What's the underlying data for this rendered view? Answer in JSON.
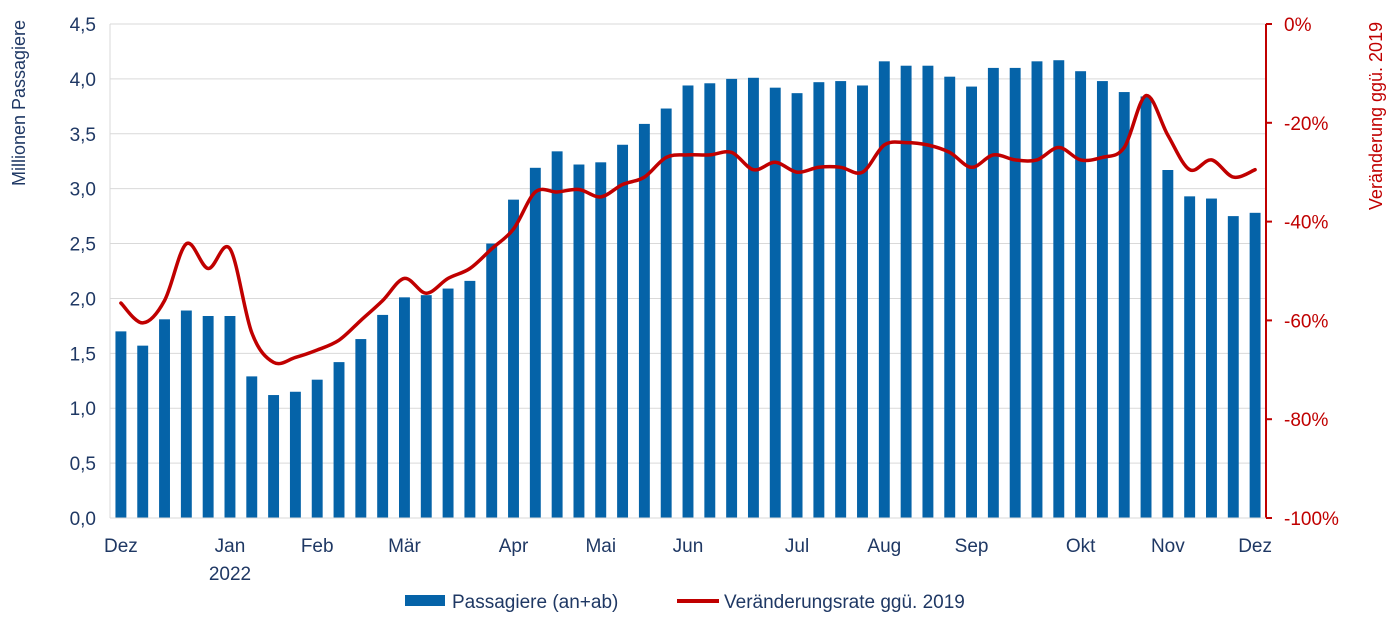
{
  "chart_data": {
    "type": "bar+line",
    "ylabel_left": "Millionen Passagiere",
    "ylabel_right": "Veränderung ggü. 2019",
    "ylim_left": [
      0,
      4.5
    ],
    "ylim_right": [
      -100,
      0
    ],
    "yticks_left": [
      "0,0",
      "0,5",
      "1,0",
      "1,5",
      "2,0",
      "2,5",
      "3,0",
      "3,5",
      "4,0",
      "4,5"
    ],
    "yticks_right": [
      "0%",
      "-20%",
      "-40%",
      "-60%",
      "-80%",
      "-100%"
    ],
    "x_labels": [
      {
        "index": 0,
        "label": "Dez"
      },
      {
        "index": 5,
        "label": "Jan",
        "sublabel": "2022"
      },
      {
        "index": 9,
        "label": "Feb"
      },
      {
        "index": 13,
        "label": "Mär"
      },
      {
        "index": 18,
        "label": "Apr"
      },
      {
        "index": 22,
        "label": "Mai"
      },
      {
        "index": 26,
        "label": "Jun"
      },
      {
        "index": 31,
        "label": "Jul"
      },
      {
        "index": 35,
        "label": "Aug"
      },
      {
        "index": 39,
        "label": "Sep"
      },
      {
        "index": 44,
        "label": "Okt"
      },
      {
        "index": 48,
        "label": "Nov"
      },
      {
        "index": 52,
        "label": "Dez"
      }
    ],
    "grid": true,
    "legend_position": "bottom",
    "colors": {
      "bar": "#0563A8",
      "line": "#C00000",
      "grid": "#D9D9D9",
      "left_axis": "#1F3864",
      "right_axis": "#C00000"
    },
    "series": [
      {
        "name": "Passagiere (an+ab)",
        "type": "bar",
        "axis": "left",
        "values": [
          1.7,
          1.57,
          1.81,
          1.89,
          1.84,
          1.84,
          1.29,
          1.12,
          1.15,
          1.26,
          1.42,
          1.63,
          1.85,
          2.01,
          2.03,
          2.09,
          2.16,
          2.5,
          2.9,
          3.19,
          3.34,
          3.22,
          3.24,
          3.4,
          3.59,
          3.73,
          3.94,
          3.96,
          4.0,
          4.01,
          3.92,
          3.87,
          3.97,
          3.98,
          3.94,
          4.16,
          4.12,
          4.12,
          4.02,
          3.93,
          4.1,
          4.1,
          4.16,
          4.17,
          4.07,
          3.98,
          3.88,
          3.84,
          3.17,
          2.93,
          2.91,
          2.75,
          2.78
        ]
      },
      {
        "name": "Veränderungsrate ggü. 2019",
        "type": "line",
        "axis": "right",
        "values": [
          -56.5,
          -60.5,
          -56,
          -44.5,
          -49.5,
          -45.5,
          -62.5,
          -68.5,
          -67.5,
          -66,
          -64,
          -60,
          -56,
          -51.5,
          -54.5,
          -51.5,
          -49.5,
          -45.5,
          -41.5,
          -34,
          -34,
          -33.5,
          -35,
          -32.5,
          -31,
          -27,
          -26.5,
          -26.5,
          -26,
          -29.5,
          -28,
          -30,
          -29,
          -29,
          -30,
          -24.5,
          -24,
          -24.5,
          -26,
          -29,
          -26.5,
          -27.5,
          -27.5,
          -25,
          -27.5,
          -27,
          -25,
          -14.5,
          -22.5,
          -29.5,
          -27.5,
          -31,
          -29.5
        ]
      }
    ]
  }
}
